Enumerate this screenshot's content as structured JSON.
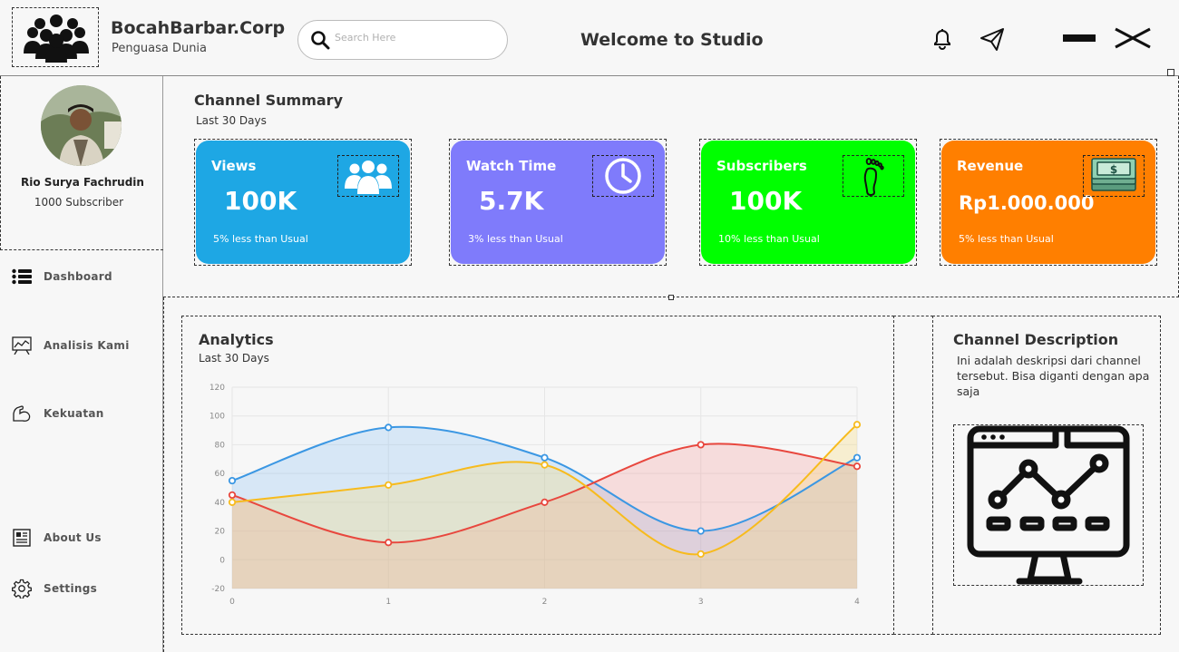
{
  "header": {
    "brand_title": "BocahBarbar.Corp",
    "brand_subtitle": "Penguasa Dunia",
    "search_placeholder": "Search Here",
    "welcome": "Welcome to Studio",
    "icons": [
      "group-logo-icon",
      "search-icon",
      "bell-icon",
      "send-icon",
      "minimize-icon",
      "close-icon"
    ]
  },
  "profile": {
    "name": "Rio Surya Fachrudin",
    "subscribers": "1000 Subscriber"
  },
  "nav": [
    {
      "label": "Dashboard",
      "icon": "list-icon"
    },
    {
      "label": "Analisis Kami",
      "icon": "chart-board-icon"
    },
    {
      "label": "Kekuatan",
      "icon": "muscle-icon"
    },
    {
      "label": "About Us",
      "icon": "newspaper-icon"
    },
    {
      "label": "Settings",
      "icon": "gear-icon"
    }
  ],
  "summary": {
    "title": "Channel Summary",
    "subtitle": "Last 30 Days",
    "cards": [
      {
        "title": "Views",
        "value": "100K",
        "note": "5% less than Usual",
        "color": "#1ea7e4",
        "icon": "users-icon"
      },
      {
        "title": "Watch Time",
        "value": "5.7K",
        "note": "3% less than Usual",
        "color": "#7f7bfb",
        "icon": "clock-icon"
      },
      {
        "title": "Subscribers",
        "value": "100K",
        "note": "10% less than Usual",
        "color": "#00ff00",
        "icon": "footprint-icon"
      },
      {
        "title": "Revenue",
        "value": "Rp1.000.000",
        "note": "5% less than Usual",
        "color": "#ff7f00",
        "icon": "money-icon"
      }
    ]
  },
  "analytics": {
    "title": "Analytics",
    "subtitle": "Last 30 Days"
  },
  "description": {
    "title": "Channel Description",
    "text": "Ini adalah deskripsi dari channel tersebut. Bisa diganti dengan apa saja",
    "image_icon": "monitor-analytics-icon"
  },
  "chart_data": {
    "type": "area",
    "x": [
      0,
      1,
      2,
      3,
      4
    ],
    "ylim": [
      -20,
      120
    ],
    "yticks": [
      -20,
      0,
      20,
      40,
      60,
      80,
      100,
      120
    ],
    "grid": true,
    "series": [
      {
        "values": [
          55,
          92,
          71,
          20,
          71
        ],
        "color": "#3b97e3",
        "fill": "rgba(120,185,245,0.25)"
      },
      {
        "values": [
          45,
          12,
          40,
          80,
          65
        ],
        "color": "#e8473e",
        "fill": "rgba(245,140,140,0.25)"
      },
      {
        "values": [
          40,
          52,
          66,
          4,
          94
        ],
        "color": "#f7bb1d",
        "fill": "rgba(250,220,120,0.3)"
      }
    ]
  }
}
